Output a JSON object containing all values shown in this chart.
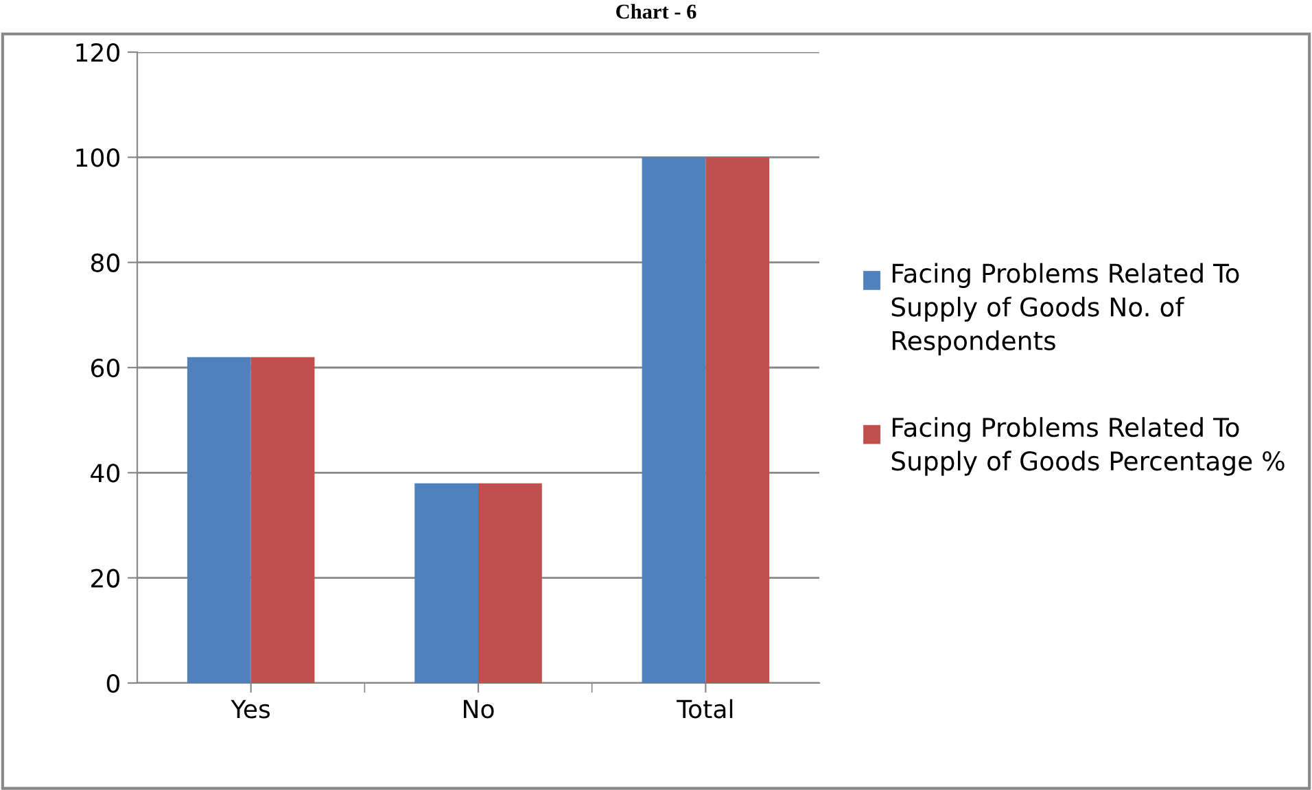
{
  "chart_data": {
    "type": "bar",
    "title": "Chart - 6",
    "categories": [
      "Yes",
      "No",
      "Total"
    ],
    "series": [
      {
        "name": "Facing Problems Related To Supply of Goods No. of Respondents",
        "color": "#4f81bd",
        "values": [
          62,
          38,
          100
        ]
      },
      {
        "name": "Facing Problems Related To Supply of Goods Percentage %",
        "color": "#c0504d",
        "values": [
          62,
          38,
          100
        ]
      }
    ],
    "ylim": [
      0,
      120
    ],
    "yticks": [
      0,
      20,
      40,
      60,
      80,
      100,
      120
    ],
    "grid": "y",
    "legend": "right"
  }
}
